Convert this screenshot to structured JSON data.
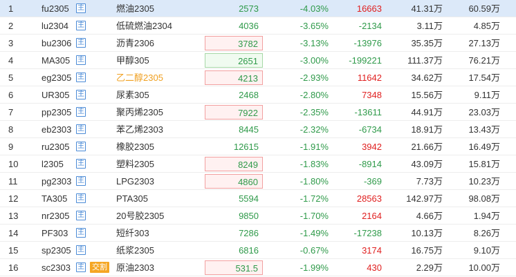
{
  "rows": [
    {
      "idx": "1",
      "code": "fu2305",
      "badge": "主",
      "badge2": "",
      "name": "燃油2305",
      "name_color": "",
      "price": "2573",
      "price_box": "",
      "pct": "-4.03%",
      "delta": "16663",
      "delta_color": "red",
      "vol": "41.31万",
      "oi": "60.59万",
      "selected": true
    },
    {
      "idx": "2",
      "code": "lu2304",
      "badge": "主",
      "badge2": "",
      "name": "低硫燃油2304",
      "name_color": "",
      "price": "4036",
      "price_box": "",
      "pct": "-3.65%",
      "delta": "-2134",
      "delta_color": "green",
      "vol": "3.11万",
      "oi": "4.85万",
      "selected": false
    },
    {
      "idx": "3",
      "code": "bu2306",
      "badge": "主",
      "badge2": "",
      "name": "沥青2306",
      "name_color": "",
      "price": "3782",
      "price_box": "red",
      "pct": "-3.13%",
      "delta": "-13976",
      "delta_color": "green",
      "vol": "35.35万",
      "oi": "27.13万",
      "selected": false
    },
    {
      "idx": "4",
      "code": "MA305",
      "badge": "主",
      "badge2": "",
      "name": "甲醇305",
      "name_color": "",
      "price": "2651",
      "price_box": "green",
      "pct": "-3.00%",
      "delta": "-199221",
      "delta_color": "green",
      "vol": "111.37万",
      "oi": "76.21万",
      "selected": false
    },
    {
      "idx": "5",
      "code": "eg2305",
      "badge": "主",
      "badge2": "",
      "name": "乙二醇2305",
      "name_color": "orange",
      "price": "4213",
      "price_box": "red",
      "pct": "-2.93%",
      "delta": "11642",
      "delta_color": "red",
      "vol": "34.62万",
      "oi": "17.54万",
      "selected": false
    },
    {
      "idx": "6",
      "code": "UR305",
      "badge": "主",
      "badge2": "",
      "name": "尿素305",
      "name_color": "",
      "price": "2468",
      "price_box": "",
      "pct": "-2.80%",
      "delta": "7348",
      "delta_color": "red",
      "vol": "15.56万",
      "oi": "9.11万",
      "selected": false
    },
    {
      "idx": "7",
      "code": "pp2305",
      "badge": "主",
      "badge2": "",
      "name": "聚丙烯2305",
      "name_color": "",
      "price": "7922",
      "price_box": "red",
      "pct": "-2.35%",
      "delta": "-13611",
      "delta_color": "green",
      "vol": "44.91万",
      "oi": "23.03万",
      "selected": false
    },
    {
      "idx": "8",
      "code": "eb2303",
      "badge": "主",
      "badge2": "",
      "name": "苯乙烯2303",
      "name_color": "",
      "price": "8445",
      "price_box": "",
      "pct": "-2.32%",
      "delta": "-6734",
      "delta_color": "green",
      "vol": "18.91万",
      "oi": "13.43万",
      "selected": false
    },
    {
      "idx": "9",
      "code": "ru2305",
      "badge": "主",
      "badge2": "",
      "name": "橡胶2305",
      "name_color": "",
      "price": "12615",
      "price_box": "",
      "pct": "-1.91%",
      "delta": "3942",
      "delta_color": "red",
      "vol": "21.66万",
      "oi": "16.49万",
      "selected": false
    },
    {
      "idx": "10",
      "code": "l2305",
      "badge": "主",
      "badge2": "",
      "name": "塑料2305",
      "name_color": "",
      "price": "8249",
      "price_box": "red",
      "pct": "-1.83%",
      "delta": "-8914",
      "delta_color": "green",
      "vol": "43.09万",
      "oi": "15.81万",
      "selected": false
    },
    {
      "idx": "11",
      "code": "pg2303",
      "badge": "主",
      "badge2": "",
      "name": "LPG2303",
      "name_color": "",
      "price": "4860",
      "price_box": "red",
      "pct": "-1.80%",
      "delta": "-369",
      "delta_color": "green",
      "vol": "7.73万",
      "oi": "10.23万",
      "selected": false
    },
    {
      "idx": "12",
      "code": "TA305",
      "badge": "主",
      "badge2": "",
      "name": "PTA305",
      "name_color": "",
      "price": "5594",
      "price_box": "",
      "pct": "-1.72%",
      "delta": "28563",
      "delta_color": "red",
      "vol": "142.97万",
      "oi": "98.08万",
      "selected": false
    },
    {
      "idx": "13",
      "code": "nr2305",
      "badge": "主",
      "badge2": "",
      "name": "20号胶2305",
      "name_color": "",
      "price": "9850",
      "price_box": "",
      "pct": "-1.70%",
      "delta": "2164",
      "delta_color": "red",
      "vol": "4.66万",
      "oi": "1.94万",
      "selected": false
    },
    {
      "idx": "14",
      "code": "PF303",
      "badge": "主",
      "badge2": "",
      "name": "短纤303",
      "name_color": "",
      "price": "7286",
      "price_box": "",
      "pct": "-1.49%",
      "delta": "-17238",
      "delta_color": "green",
      "vol": "10.13万",
      "oi": "8.26万",
      "selected": false
    },
    {
      "idx": "15",
      "code": "sp2305",
      "badge": "主",
      "badge2": "",
      "name": "纸浆2305",
      "name_color": "",
      "price": "6816",
      "price_box": "",
      "pct": "-0.67%",
      "delta": "3174",
      "delta_color": "red",
      "vol": "16.75万",
      "oi": "9.10万",
      "selected": false
    },
    {
      "idx": "16",
      "code": "sc2303",
      "badge": "主",
      "badge2": "交割",
      "name": "原油2303",
      "name_color": "",
      "price": "531.5",
      "price_box": "red",
      "pct": "-1.99%",
      "delta": "430",
      "delta_color": "red",
      "vol": "2.29万",
      "oi": "10.00万",
      "selected": false
    }
  ],
  "colors": {
    "up": "#e02020",
    "down": "#2f9a4a",
    "accent": "#4a8ad6",
    "selected_row": "#dce9f9",
    "name_highlight": "#f0a020",
    "badge_delivery": "#f5a623"
  }
}
